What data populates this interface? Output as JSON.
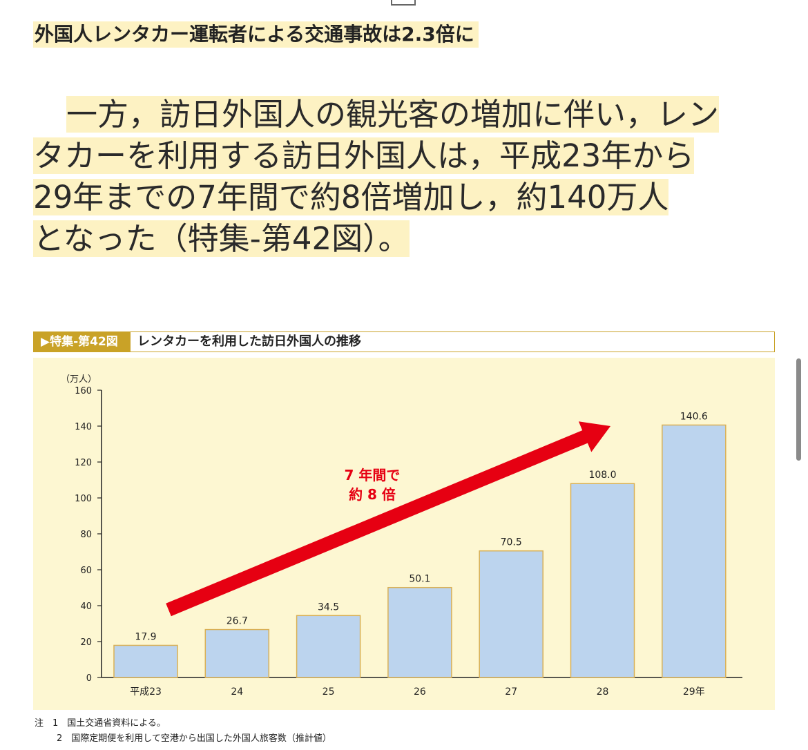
{
  "headline": "外国人レンタカー運転者による交通事故は2.3倍に",
  "paragraph": {
    "lines": [
      "一方，訪日外国人の観光客の増加に伴い，レン",
      "タカーを利用する訪日外国人は，平成23年から",
      "29年までの7年間で約8倍増加し，約140万人",
      "となった（特集-第42図）。"
    ]
  },
  "figure": {
    "tag": "▶特集-第42図",
    "title": "レンタカーを利用した訪日外国人の推移"
  },
  "chart_data": {
    "type": "bar",
    "categories": [
      "平成23",
      "24",
      "25",
      "26",
      "27",
      "28",
      "29年"
    ],
    "values": [
      17.9,
      26.7,
      34.5,
      50.1,
      70.5,
      108.0,
      140.6
    ],
    "value_labels": [
      "17.9",
      "26.7",
      "34.5",
      "50.1",
      "70.5",
      "108.0",
      "140.6"
    ],
    "ylabel": "（万人）",
    "ylim": [
      0,
      160
    ],
    "yticks": [
      "0",
      "20",
      "40",
      "60",
      "80",
      "100",
      "120",
      "140",
      "160"
    ],
    "annotation": {
      "line1": "7 年間で",
      "line2": "約 8 倍"
    },
    "colors": {
      "bar": "#bcd4ee",
      "bar_stroke": "#d9b055",
      "arrow": "#e60012",
      "axis": "#222222"
    }
  },
  "notes": [
    "注　1　国土交通省資料による。",
    "2　国際定期便を利用して空港から出国した外国人旅客数（推計値）"
  ]
}
